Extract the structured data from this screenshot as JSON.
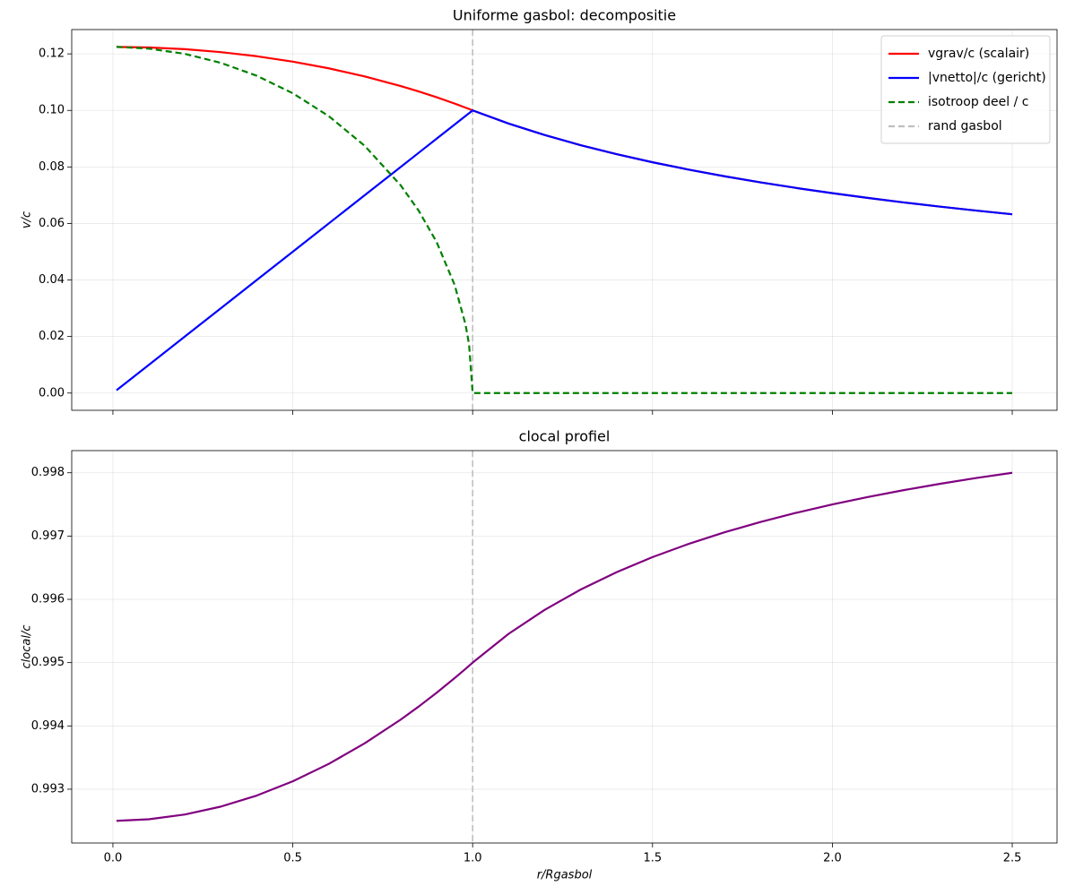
{
  "chart_data": [
    {
      "type": "line",
      "title": "Uniforme gasbol: decompositie",
      "ylabel": "v/c",
      "x": [
        0.01,
        0.1,
        0.2,
        0.3,
        0.4,
        0.5,
        0.6,
        0.7,
        0.8,
        0.85,
        0.9,
        0.95,
        0.98,
        0.99,
        1.0,
        1.1,
        1.2,
        1.3,
        1.4,
        1.5,
        1.6,
        1.7,
        1.8,
        1.9,
        2.0,
        2.1,
        2.2,
        2.3,
        2.4,
        2.5
      ],
      "series": [
        {
          "name": "vgrav/c (scalair)",
          "color": "#ff0000",
          "dash": "solid",
          "values": [
            0.12247,
            0.12227,
            0.12166,
            0.12062,
            0.11916,
            0.11726,
            0.11489,
            0.11203,
            0.10863,
            0.10671,
            0.10464,
            0.10241,
            0.10099,
            0.1005,
            0.1,
            0.09535,
            0.09129,
            0.08771,
            0.08452,
            0.08165,
            0.07906,
            0.0767,
            0.07454,
            0.07255,
            0.07071,
            0.06901,
            0.06742,
            0.06594,
            0.06455,
            0.06325
          ]
        },
        {
          "name": "|vnetto|/c (gericht)",
          "color": "#0000ff",
          "dash": "solid",
          "values": [
            0.001,
            0.01,
            0.02,
            0.03,
            0.04,
            0.05,
            0.06,
            0.07,
            0.08,
            0.085,
            0.09,
            0.095,
            0.098,
            0.099,
            0.1,
            0.09535,
            0.09129,
            0.08771,
            0.08452,
            0.08165,
            0.07906,
            0.0767,
            0.07454,
            0.07255,
            0.07071,
            0.06901,
            0.06742,
            0.06594,
            0.06455,
            0.06325
          ]
        },
        {
          "name": "isotroop deel / c",
          "color": "#008000",
          "dash": "dashed",
          "values": [
            0.12247,
            0.12186,
            0.12,
            0.11683,
            0.11225,
            0.10607,
            0.09798,
            0.08746,
            0.07348,
            0.06452,
            0.05339,
            0.03824,
            0.02437,
            0.01728,
            0,
            0,
            0,
            0,
            0,
            0,
            0,
            0,
            0,
            0,
            0,
            0,
            0,
            0,
            0,
            0
          ]
        }
      ],
      "vlines": [
        {
          "x": 1.0,
          "name": "rand gasbol",
          "color": "#bfbfbf",
          "dash": "dashed"
        }
      ],
      "xlim": [
        -0.1145,
        2.6245
      ],
      "ylim": [
        -0.0061,
        0.1286
      ],
      "xticks": [
        0,
        0.5,
        1,
        1.5,
        2,
        2.5
      ],
      "show_xticklabels": false,
      "yticks": [
        {
          "value": 0,
          "label": "0.00"
        },
        0.02,
        0.04,
        0.06,
        0.08,
        {
          "value": 0.1,
          "label": "0.10"
        },
        0.12
      ],
      "grid": true,
      "legend": "upper right"
    },
    {
      "type": "line",
      "title": "clocal profiel",
      "ylabel": "clocal/c",
      "xlabel": "r/Rgasbol",
      "x": [
        0.01,
        0.1,
        0.2,
        0.3,
        0.4,
        0.5,
        0.6,
        0.7,
        0.8,
        0.85,
        0.9,
        0.95,
        0.98,
        0.99,
        1.0,
        1.1,
        1.2,
        1.3,
        1.4,
        1.5,
        1.6,
        1.7,
        1.8,
        1.9,
        2.0,
        2.1,
        2.2,
        2.3,
        2.4,
        2.5
      ],
      "series": [
        {
          "color": "#800080",
          "dash": "solid",
          "values": [
            0.9925,
            0.992525,
            0.9926,
            0.992725,
            0.9929,
            0.993125,
            0.9934,
            0.993725,
            0.9941,
            0.994306,
            0.994525,
            0.994756,
            0.994901,
            0.99495,
            0.995,
            0.995455,
            0.995833,
            0.996154,
            0.996429,
            0.996667,
            0.996875,
            0.997059,
            0.997222,
            0.997368,
            0.9975,
            0.997619,
            0.997727,
            0.997826,
            0.997917,
            0.998
          ]
        }
      ],
      "vlines": [
        {
          "x": 1.0,
          "color": "#bfbfbf",
          "dash": "dashed"
        }
      ],
      "xlim": [
        -0.1145,
        2.6245
      ],
      "ylim": [
        0.99215,
        0.99835
      ],
      "xticks": [
        {
          "value": 0,
          "label": "0.0"
        },
        0.5,
        {
          "value": 1,
          "label": "1.0"
        },
        1.5,
        {
          "value": 2,
          "label": "2.0"
        },
        2.5
      ],
      "show_xticklabels": true,
      "yticks": [
        0.993,
        0.994,
        0.995,
        0.996,
        0.997,
        0.998
      ],
      "grid": true
    }
  ]
}
